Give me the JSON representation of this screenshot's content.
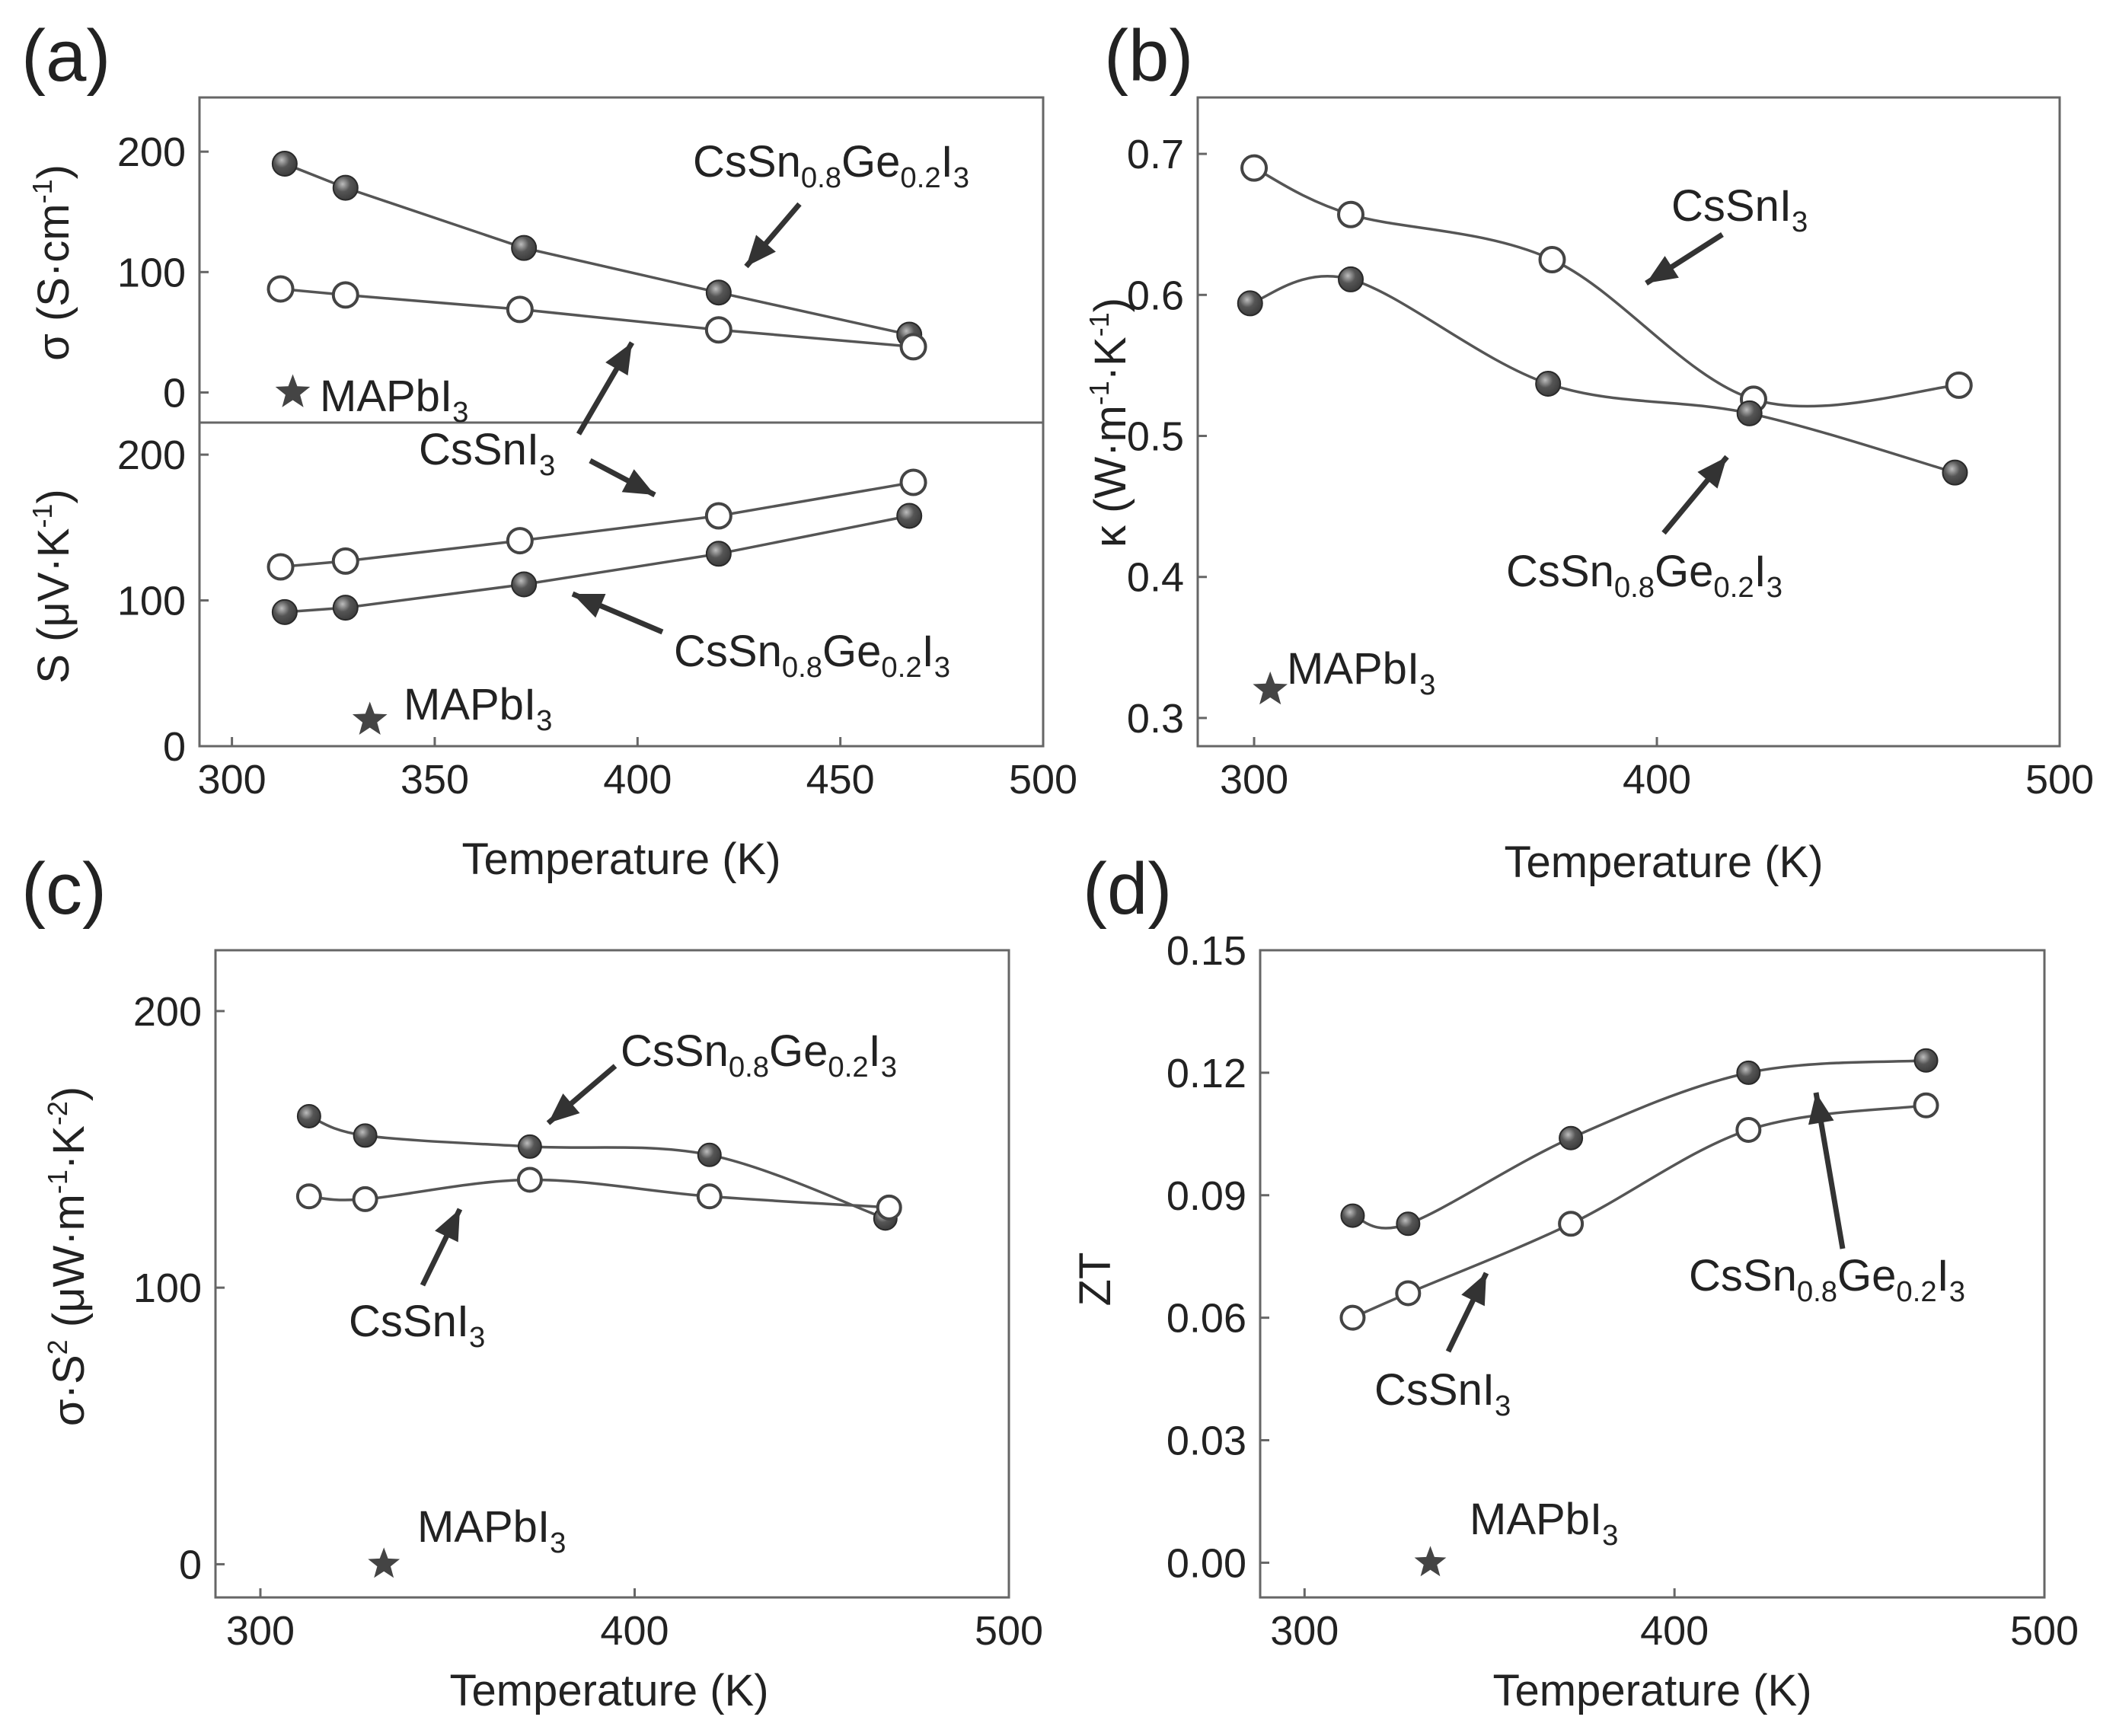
{
  "colors": {
    "filled_marker": "#3a3a3a",
    "open_marker_stroke": "#444444",
    "line": "#555555",
    "frame": "#666666"
  },
  "chart_data": [
    {
      "panel": "a",
      "type": "line",
      "xlabel": "Temperature (K)",
      "xlim": [
        292,
        500
      ],
      "xticks": [
        "300",
        "350",
        "400",
        "450",
        "500"
      ],
      "subplots": [
        {
          "name": "conductivity",
          "ylabel": "σ (S·cm-1)",
          "ylabel_parts": [
            "σ (S·cm",
            "-1",
            ")"
          ],
          "ylim": [
            -25,
            245
          ],
          "yticks": [
            "0",
            "100",
            "200"
          ],
          "series": [
            {
              "name": "CsSn0.8Ge0.2I3",
              "marker": "filled",
              "x": [
                313,
                328,
                372,
                420,
                467
              ],
              "values": [
                190,
                170,
                120,
                83,
                48
              ]
            },
            {
              "name": "CsSnI3",
              "marker": "open",
              "x": [
                312,
                328,
                371,
                420,
                468
              ],
              "values": [
                86,
                81,
                69,
                52,
                38
              ]
            },
            {
              "name": "MAPbI3",
              "marker": "star",
              "x": [
                315
              ],
              "values": [
                0
              ]
            }
          ]
        },
        {
          "name": "seebeck",
          "ylabel": "S (μV·K-1)",
          "ylabel_parts": [
            "S (μV·K",
            "-1",
            ")"
          ],
          "ylim": [
            0,
            222
          ],
          "yticks": [
            "0",
            "100",
            "200"
          ],
          "series": [
            {
              "name": "CsSn0.8Ge0.2I3",
              "marker": "filled",
              "x": [
                313,
                328,
                372,
                420,
                467
              ],
              "values": [
                92,
                95,
                111,
                132,
                158
              ]
            },
            {
              "name": "CsSnI3",
              "marker": "open",
              "x": [
                312,
                328,
                371,
                420,
                468
              ],
              "values": [
                123,
                127,
                141,
                158,
                181
              ]
            },
            {
              "name": "MAPbI3",
              "marker": "star",
              "x": [
                334
              ],
              "values": [
                18
              ]
            }
          ]
        }
      ],
      "labels": {
        "ge": [
          "CsSn",
          "0.8",
          "Ge",
          "0.2",
          "I",
          "3"
        ],
        "sn": [
          "CsSnI",
          "3"
        ],
        "ma": [
          "MAPbI",
          "3"
        ]
      }
    },
    {
      "panel": "b",
      "type": "line",
      "xlabel": "Temperature (K)",
      "ylabel": "κ (W·m-1·K-1)",
      "ylabel_parts": [
        "κ (W·m",
        "-1",
        "·K",
        "-1",
        ")"
      ],
      "xlim": [
        286,
        500
      ],
      "ylim": [
        0.28,
        0.74
      ],
      "xticks": [
        "300",
        "400",
        "500"
      ],
      "yticks": [
        "0.3",
        "0.4",
        "0.5",
        "0.6",
        "0.7"
      ],
      "series": [
        {
          "name": "CsSnI3",
          "marker": "open",
          "x": [
            300,
            324,
            374,
            424,
            475
          ],
          "values": [
            0.69,
            0.657,
            0.625,
            0.526,
            0.536
          ]
        },
        {
          "name": "CsSn0.8Ge0.2I3",
          "marker": "filled",
          "x": [
            299,
            324,
            373,
            423,
            474
          ],
          "values": [
            0.594,
            0.611,
            0.537,
            0.516,
            0.474
          ]
        },
        {
          "name": "MAPbI3",
          "marker": "star",
          "x": [
            304
          ],
          "values": [
            0.32
          ]
        }
      ],
      "labels": {
        "ge": [
          "CsSn",
          "0.8",
          "Ge",
          "0.2",
          "I",
          "3"
        ],
        "sn": [
          "CsSnI",
          "3"
        ],
        "ma": [
          "MAPbI",
          "3"
        ]
      }
    },
    {
      "panel": "c",
      "type": "line",
      "xlabel": "Temperature (K)",
      "ylabel": "σ·S2 (μW·m-1·K-2)",
      "ylabel_parts": [
        "σ·S",
        "2",
        " (μW·m",
        "-1",
        "·K",
        "-2",
        ")"
      ],
      "xlim": [
        288,
        500
      ],
      "ylim": [
        -12,
        222
      ],
      "xticks": [
        "300",
        "400",
        "500"
      ],
      "yticks": [
        "0",
        "100",
        "200"
      ],
      "series": [
        {
          "name": "CsSn0.8Ge0.2I3",
          "marker": "filled",
          "x": [
            313,
            328,
            372,
            420,
            467
          ],
          "values": [
            162,
            155,
            151,
            148,
            125
          ]
        },
        {
          "name": "CsSnI3",
          "marker": "open",
          "x": [
            313,
            328,
            372,
            420,
            468
          ],
          "values": [
            133,
            132,
            139,
            133,
            129
          ]
        },
        {
          "name": "MAPbI3",
          "marker": "star",
          "x": [
            333
          ],
          "values": [
            0
          ]
        }
      ],
      "labels": {
        "ge": [
          "CsSn",
          "0.8",
          "Ge",
          "0.2",
          "I",
          "3"
        ],
        "sn": [
          "CsSnI",
          "3"
        ],
        "ma": [
          "MAPbI",
          "3"
        ]
      }
    },
    {
      "panel": "d",
      "type": "line",
      "xlabel": "Temperature (K)",
      "ylabel": "ZT",
      "ylabel_parts": [
        "ZT"
      ],
      "xlim": [
        288,
        500
      ],
      "ylim": [
        -0.0085,
        0.15
      ],
      "xticks": [
        "300",
        "400",
        "500"
      ],
      "yticks": [
        "0.00",
        "0.03",
        "0.06",
        "0.09",
        "0.12",
        "0.15"
      ],
      "series": [
        {
          "name": "CsSn0.8Ge0.2I3",
          "marker": "filled",
          "x": [
            313,
            328,
            372,
            420,
            468
          ],
          "values": [
            0.085,
            0.083,
            0.104,
            0.12,
            0.123
          ]
        },
        {
          "name": "CsSnI3",
          "marker": "open",
          "x": [
            313,
            328,
            372,
            420,
            468
          ],
          "values": [
            0.06,
            0.066,
            0.083,
            0.106,
            0.112
          ]
        },
        {
          "name": "MAPbI3",
          "marker": "star",
          "x": [
            334
          ],
          "values": [
            0.0
          ]
        }
      ],
      "labels": {
        "ge": [
          "CsSn",
          "0.8",
          "Ge",
          "0.2",
          "I",
          "3"
        ],
        "sn": [
          "CsSnI",
          "3"
        ],
        "ma": [
          "MAPbI",
          "3"
        ]
      }
    }
  ],
  "panel_letters": [
    "(a)",
    "(b)",
    "(c)",
    "(d)"
  ]
}
